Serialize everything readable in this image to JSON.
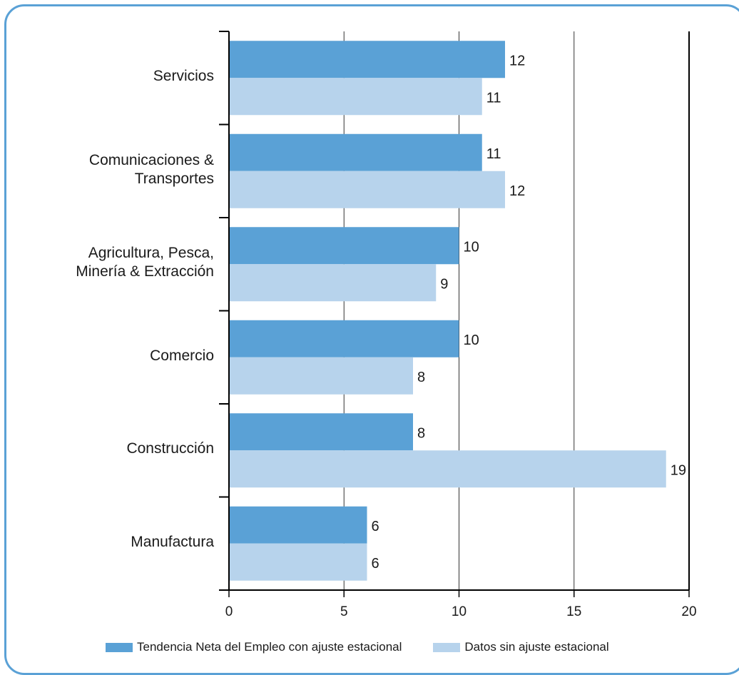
{
  "chart_data": {
    "type": "bar",
    "orientation": "horizontal",
    "title": "",
    "xlabel": "",
    "ylabel": "",
    "xlim": [
      0,
      20
    ],
    "ticks": [
      "0",
      "5",
      "10",
      "15",
      "20"
    ],
    "grid": true,
    "legend_position": "bottom",
    "categories": [
      "Servicios",
      "Comunicaciones &\nTransportes",
      "Agricultura, Pesca,\nMinería & Extracción",
      "Comercio",
      "Construcción",
      "Manufactura"
    ],
    "series": [
      {
        "name": "Tendencia Neta del Empleo con ajuste estacional",
        "color": "#5aa1d6",
        "values": [
          12,
          11,
          10,
          10,
          8,
          6
        ]
      },
      {
        "name": "Datos sin ajuste estacional",
        "color": "#b7d3ec",
        "values": [
          11,
          12,
          9,
          8,
          19,
          6
        ]
      }
    ]
  }
}
